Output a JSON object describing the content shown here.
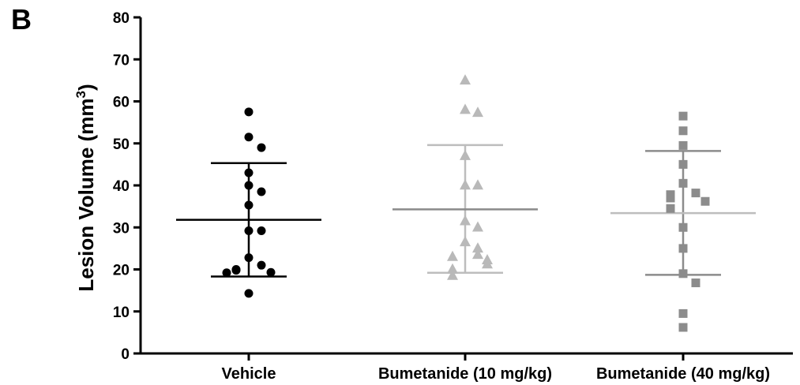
{
  "panel_label": "B",
  "chart_data": {
    "type": "scatter",
    "title": "",
    "xlabel": "",
    "ylabel": "Lesion Volume (mm",
    "ylabel_superscript": "3",
    "ylabel_close": ")",
    "ylim": [
      0,
      80
    ],
    "yticks": [
      0,
      10,
      20,
      30,
      40,
      50,
      60,
      70,
      80
    ],
    "categories": [
      "Vehicle",
      "Bumetanide (10 mg/kg)",
      "Bumetanide (40 mg/kg)"
    ],
    "grid": false,
    "series": [
      {
        "marker": "circle",
        "color": "#000000",
        "values": [
          57.5,
          51.5,
          49,
          43,
          40,
          38.5,
          35.3,
          29.2,
          29.2,
          22.8,
          21,
          20,
          19.8,
          19.3,
          19.2,
          14.3
        ],
        "mean": 31.8,
        "sd_low": 18.3,
        "sd_high": 45.3,
        "bar_color": "#000000"
      },
      {
        "marker": "triangle",
        "color": "#b9b9b9",
        "values": [
          65,
          58,
          57.3,
          47,
          40,
          40,
          31.5,
          30,
          26.5,
          25,
          23.5,
          23,
          22.2,
          21.2,
          20,
          18.5
        ],
        "mean": 34.3,
        "sd_low": 19.2,
        "sd_high": 49.6,
        "bar_color": "#bdbdbd",
        "mean_color": "#8a8a8a"
      },
      {
        "marker": "square",
        "color": "#8c8c8c",
        "values": [
          56.5,
          53,
          49.5,
          45,
          40.5,
          38.2,
          37.8,
          37,
          36.2,
          34.5,
          30,
          25,
          19,
          16.8,
          9.5,
          6.2
        ],
        "mean": 33.4,
        "sd_low": 18.7,
        "sd_high": 48.2,
        "bar_color": "#8c8c8c",
        "mean_color": "#bdbdbd"
      }
    ]
  }
}
